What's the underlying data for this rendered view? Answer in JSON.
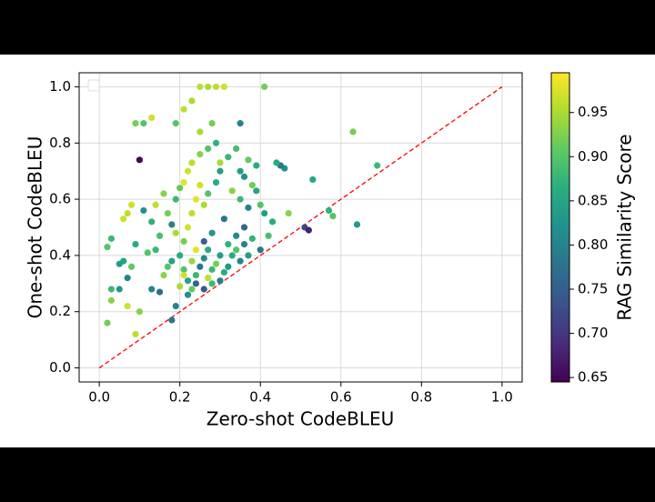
{
  "chart_data": {
    "type": "scatter",
    "xlabel": "Zero-shot CodeBLEU",
    "ylabel": "One-shot CodeBLEU",
    "x": [
      0.1,
      0.09,
      0.11,
      0.13,
      0.25,
      0.27,
      0.29,
      0.31,
      0.41,
      0.23,
      0.21,
      0.19,
      0.35,
      0.28,
      0.25,
      0.63,
      0.69,
      0.64,
      0.57,
      0.58,
      0.53,
      0.51,
      0.52,
      0.47,
      0.43,
      0.46,
      0.45,
      0.44,
      0.02,
      0.03,
      0.03,
      0.05,
      0.06,
      0.05,
      0.02,
      0.03,
      0.06,
      0.07,
      0.08,
      0.09,
      0.1,
      0.09,
      0.07,
      0.12,
      0.14,
      0.11,
      0.13,
      0.15,
      0.07,
      0.08,
      0.18,
      0.19,
      0.17,
      0.18,
      0.16,
      0.2,
      0.22,
      0.24,
      0.26,
      0.27,
      0.28,
      0.3,
      0.32,
      0.33,
      0.34,
      0.36,
      0.38,
      0.4,
      0.42,
      0.41,
      0.21,
      0.22,
      0.23,
      0.24,
      0.25,
      0.26,
      0.27,
      0.29,
      0.3,
      0.32,
      0.33,
      0.35,
      0.36,
      0.37,
      0.38,
      0.39,
      0.31,
      0.28,
      0.26,
      0.24,
      0.23,
      0.21,
      0.2,
      0.19,
      0.18,
      0.17,
      0.16,
      0.15,
      0.14,
      0.13,
      0.22,
      0.23,
      0.21,
      0.2,
      0.19,
      0.25,
      0.27,
      0.29,
      0.3,
      0.34,
      0.35,
      0.37,
      0.39,
      0.4,
      0.36,
      0.34,
      0.32,
      0.3,
      0.29,
      0.27,
      0.25,
      0.24,
      0.23,
      0.22,
      0.21,
      0.26,
      0.28,
      0.31,
      0.35,
      0.37
    ],
    "values": [
      0.74,
      0.87,
      0.87,
      0.89,
      1,
      1,
      1,
      1,
      1,
      0.95,
      0.92,
      0.87,
      0.87,
      0.87,
      0.84,
      0.84,
      0.72,
      0.51,
      0.56,
      0.54,
      0.67,
      0.5,
      0.49,
      0.55,
      0.52,
      0.71,
      0.72,
      0.73,
      0.16,
      0.24,
      0.28,
      0.28,
      0.38,
      0.37,
      0.43,
      0.46,
      0.53,
      0.55,
      0.58,
      0.44,
      0.2,
      0.12,
      0.22,
      0.41,
      0.42,
      0.56,
      0.28,
      0.27,
      0.32,
      0.36,
      0.17,
      0.22,
      0.36,
      0.38,
      0.33,
      0.29,
      0.26,
      0.3,
      0.28,
      0.32,
      0.35,
      0.31,
      0.36,
      0.4,
      0.42,
      0.44,
      0.46,
      0.42,
      0.47,
      0.55,
      0.45,
      0.5,
      0.55,
      0.6,
      0.65,
      0.58,
      0.62,
      0.66,
      0.7,
      0.75,
      0.63,
      0.6,
      0.68,
      0.57,
      0.65,
      0.72,
      0.53,
      0.48,
      0.45,
      0.42,
      0.38,
      0.35,
      0.4,
      0.48,
      0.51,
      0.55,
      0.62,
      0.47,
      0.58,
      0.52,
      0.7,
      0.73,
      0.66,
      0.64,
      0.6,
      0.76,
      0.78,
      0.8,
      0.73,
      0.78,
      0.7,
      0.74,
      0.63,
      0.58,
      0.5,
      0.47,
      0.44,
      0.4,
      0.37,
      0.42,
      0.36,
      0.33,
      0.28,
      0.31,
      0.33,
      0.39,
      0.3,
      0.34,
      0.38,
      0.4
    ],
    "color_values": [
      0.65,
      0.92,
      0.9,
      0.97,
      0.96,
      0.95,
      0.96,
      0.97,
      0.92,
      0.95,
      0.96,
      0.9,
      0.8,
      0.92,
      0.95,
      0.92,
      0.88,
      0.83,
      0.87,
      0.9,
      0.85,
      0.72,
      0.68,
      0.93,
      0.86,
      0.82,
      0.78,
      0.86,
      0.92,
      0.93,
      0.88,
      0.83,
      0.85,
      0.84,
      0.9,
      0.88,
      0.97,
      0.96,
      0.97,
      0.86,
      0.93,
      0.96,
      0.97,
      0.9,
      0.88,
      0.82,
      0.8,
      0.77,
      0.8,
      0.91,
      0.78,
      0.8,
      0.9,
      0.85,
      0.93,
      0.95,
      0.82,
      0.76,
      0.74,
      0.96,
      0.88,
      0.79,
      0.83,
      0.86,
      0.9,
      0.8,
      0.87,
      0.78,
      0.89,
      0.84,
      0.92,
      0.97,
      0.96,
      0.98,
      0.97,
      0.95,
      0.9,
      0.86,
      0.84,
      0.88,
      0.93,
      0.88,
      0.82,
      0.8,
      0.92,
      0.86,
      0.78,
      0.83,
      0.75,
      0.98,
      0.94,
      0.9,
      0.86,
      0.95,
      0.8,
      0.92,
      0.93,
      0.89,
      0.96,
      0.87,
      0.97,
      0.96,
      0.98,
      0.91,
      0.88,
      0.93,
      0.9,
      0.87,
      0.95,
      0.89,
      0.84,
      0.91,
      0.85,
      0.9,
      0.76,
      0.81,
      0.87,
      0.84,
      0.92,
      0.86,
      0.78,
      0.88,
      0.91,
      0.85,
      0.97,
      0.81,
      0.88,
      0.86,
      0.8,
      0.84
    ],
    "xlim": [
      -0.05,
      1.05
    ],
    "ylim": [
      -0.05,
      1.05
    ],
    "xticks": [
      {
        "value": 0,
        "label": "0.0"
      },
      0.2,
      0.4,
      0.6,
      0.8,
      {
        "value": 1,
        "label": "1.0"
      }
    ],
    "yticks": [
      {
        "value": 0,
        "label": "0.0"
      },
      0.2,
      0.4,
      0.6,
      0.8,
      {
        "value": 1,
        "label": "1.0"
      }
    ],
    "grid": true,
    "reference_line": {
      "x": [
        0,
        1
      ],
      "y": [
        0,
        1
      ],
      "color": "#ff0000"
    },
    "colorbar": {
      "label": "RAG Similarity Score",
      "colormap": "viridis",
      "lim": [
        0.645,
        0.995
      ],
      "ticks": [
        0.65,
        {
          "value": 0.7,
          "label": "0.70"
        },
        0.75,
        {
          "value": 0.8,
          "label": "0.80"
        },
        0.85,
        {
          "value": 0.9,
          "label": "0.90"
        },
        0.95
      ]
    }
  }
}
